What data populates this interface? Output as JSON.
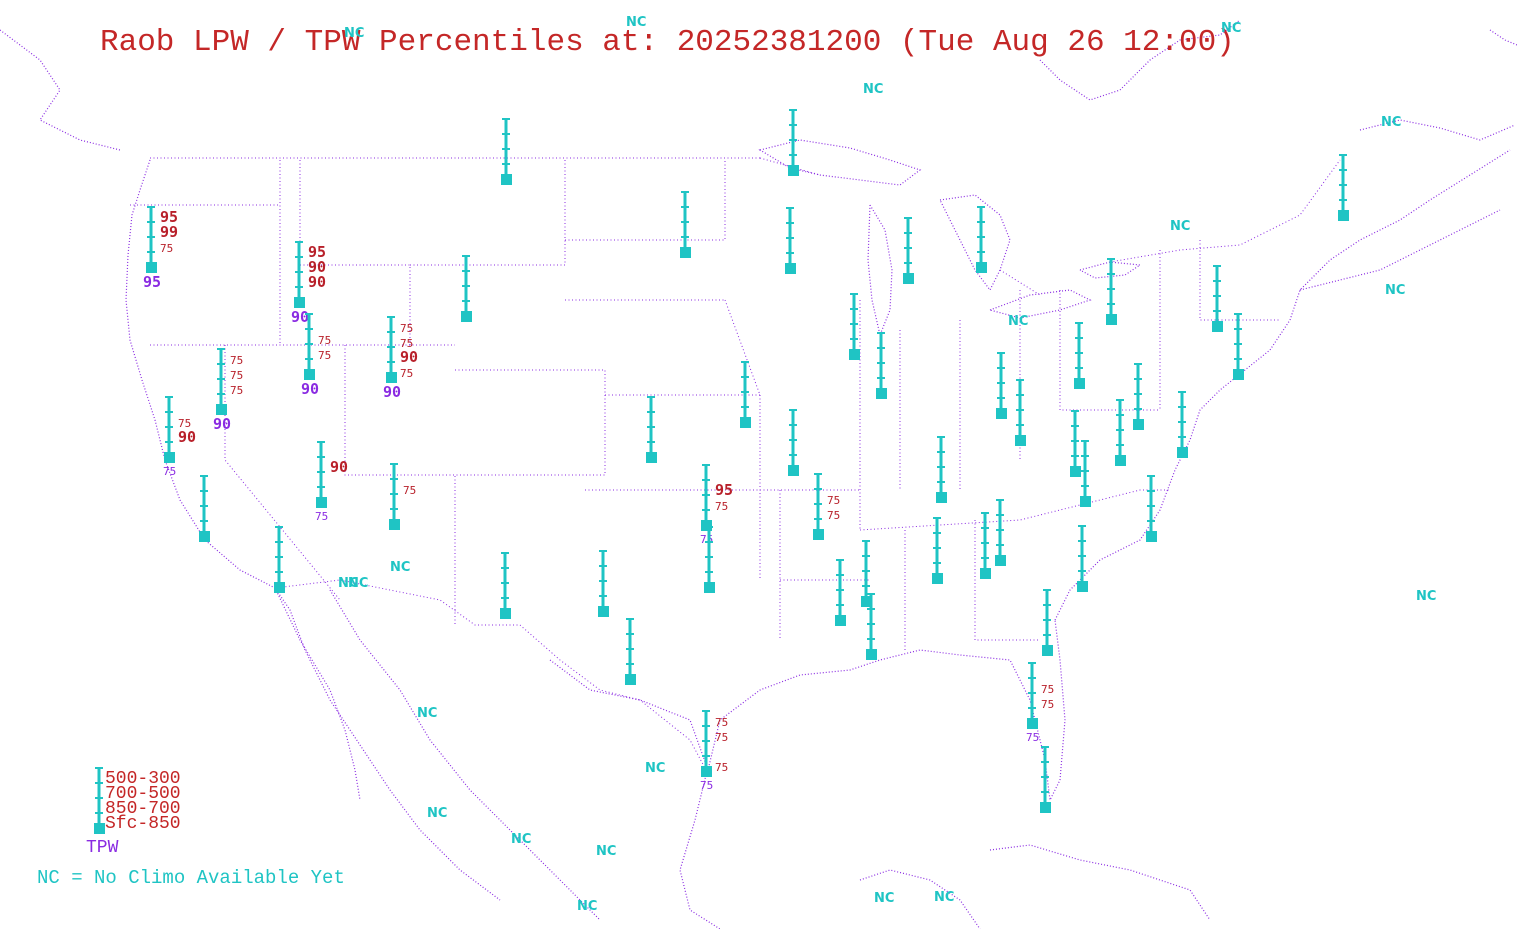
{
  "title": "Raob LPW / TPW Percentiles at: 20252381200 (Tue Aug 26 12:00)",
  "colors": {
    "title": "#c42727",
    "station": "#1fc4c4",
    "percentile": "#b8202a",
    "tpw": "#8a2be2",
    "borders": "#8a2be2"
  },
  "legend": {
    "layers": [
      "500-300",
      "700-500",
      "850-700",
      "Sfc-850"
    ],
    "tpw_label": "TPW",
    "nc_note": "NC = No Climo Available Yet"
  },
  "nc_label": "NC",
  "stations": [
    {
      "id": "quillayute",
      "p500": "95",
      "p700": "99",
      "p850": "75",
      "psfc": "",
      "tpw": "95"
    },
    {
      "id": "spokane",
      "p500": "95",
      "p700": "90",
      "p850": "90",
      "psfc": "",
      "tpw": "90"
    },
    {
      "id": "boise",
      "p500": "",
      "p700": "75",
      "p850": "75",
      "psfc": "",
      "tpw": "90"
    },
    {
      "id": "reno",
      "p500": "75",
      "p700": "75",
      "p850": "75",
      "psfc": "",
      "tpw": "90"
    },
    {
      "id": "oakland",
      "p500": "",
      "p700": "75",
      "p850": "90",
      "psfc": "",
      "tpw": "75"
    },
    {
      "id": "salt-lake-city",
      "p500": "75",
      "p700": "75",
      "p850": "90",
      "psfc": "75",
      "tpw": "90"
    },
    {
      "id": "las-vegas",
      "p500": "",
      "p700": "90",
      "p850": "",
      "psfc": "",
      "tpw": "75"
    },
    {
      "id": "grand-junction",
      "p500": "",
      "p700": "75",
      "p850": "",
      "psfc": "",
      "tpw": ""
    },
    {
      "id": "norman",
      "p500": "",
      "p700": "95",
      "p850": "75",
      "psfc": "",
      "tpw": "75"
    },
    {
      "id": "springfield",
      "p500": "",
      "p700": "75",
      "p850": "75",
      "psfc": "",
      "tpw": ""
    },
    {
      "id": "tampa",
      "p500": "",
      "p700": "75",
      "p850": "75",
      "psfc": "",
      "tpw": "75"
    },
    {
      "id": "lake-charles",
      "p500": "75",
      "p700": "75",
      "p850": "",
      "psfc": "75",
      "tpw": "75"
    },
    {
      "id": "glasgow",
      "p500": "",
      "p700": "",
      "p850": "",
      "psfc": "",
      "tpw": ""
    },
    {
      "id": "riverton",
      "p500": "",
      "p700": "",
      "p850": "",
      "psfc": "",
      "tpw": ""
    },
    {
      "id": "bismarck",
      "p500": "",
      "p700": "",
      "p850": "",
      "psfc": "",
      "tpw": ""
    },
    {
      "id": "international-falls",
      "p500": "",
      "p700": "",
      "p850": "",
      "psfc": "",
      "tpw": ""
    },
    {
      "id": "chanhassen",
      "p500": "",
      "p700": "",
      "p850": "",
      "psfc": "",
      "tpw": ""
    },
    {
      "id": "green-bay",
      "p500": "",
      "p700": "",
      "p850": "",
      "psfc": "",
      "tpw": ""
    },
    {
      "id": "gaylord",
      "p500": "",
      "p700": "",
      "p850": "",
      "psfc": "",
      "tpw": ""
    },
    {
      "id": "davenport",
      "p500": "",
      "p700": "",
      "p850": "",
      "psfc": "",
      "tpw": ""
    },
    {
      "id": "lincoln",
      "p500": "",
      "p700": "",
      "p850": "",
      "psfc": "",
      "tpw": ""
    },
    {
      "id": "topeka",
      "p500": "",
      "p700": "",
      "p850": "",
      "psfc": "",
      "tpw": ""
    },
    {
      "id": "dodge-city",
      "p500": "",
      "p700": "",
      "p850": "",
      "psfc": "",
      "tpw": ""
    },
    {
      "id": "lincoln-il",
      "p500": "",
      "p700": "",
      "p850": "",
      "psfc": "",
      "tpw": ""
    },
    {
      "id": "wilmington-oh",
      "p500": "",
      "p700": "",
      "p850": "",
      "psfc": "",
      "tpw": ""
    },
    {
      "id": "buffalo",
      "p500": "",
      "p700": "",
      "p850": "",
      "psfc": "",
      "tpw": ""
    },
    {
      "id": "pittsburgh",
      "p500": "",
      "p700": "",
      "p850": "",
      "psfc": "",
      "tpw": ""
    },
    {
      "id": "albany",
      "p500": "",
      "p700": "",
      "p850": "",
      "psfc": "",
      "tpw": ""
    },
    {
      "id": "upton",
      "p500": "",
      "p700": "",
      "p850": "",
      "psfc": "",
      "tpw": ""
    },
    {
      "id": "caribou",
      "p500": "",
      "p700": "",
      "p850": "",
      "psfc": "",
      "tpw": ""
    },
    {
      "id": "sterling",
      "p500": "",
      "p700": "",
      "p850": "",
      "psfc": "",
      "tpw": ""
    },
    {
      "id": "wallops",
      "p500": "",
      "p700": "",
      "p850": "",
      "psfc": "",
      "tpw": ""
    },
    {
      "id": "blacksburg",
      "p500": "",
      "p700": "",
      "p850": "",
      "psfc": "",
      "tpw": ""
    },
    {
      "id": "roanoke",
      "p500": "",
      "p700": "",
      "p850": "",
      "psfc": "",
      "tpw": ""
    },
    {
      "id": "newport",
      "p500": "",
      "p700": "",
      "p850": "",
      "psfc": "",
      "tpw": ""
    },
    {
      "id": "greensboro",
      "p500": "",
      "p700": "",
      "p850": "",
      "psfc": "",
      "tpw": ""
    },
    {
      "id": "charleston",
      "p500": "",
      "p700": "",
      "p850": "",
      "psfc": "",
      "tpw": ""
    },
    {
      "id": "nashville",
      "p500": "",
      "p700": "",
      "p850": "",
      "psfc": "",
      "tpw": ""
    },
    {
      "id": "birmingham",
      "p500": "",
      "p700": "",
      "p850": "",
      "psfc": "",
      "tpw": ""
    },
    {
      "id": "peachtree",
      "p500": "",
      "p700": "",
      "p850": "",
      "psfc": "",
      "tpw": ""
    },
    {
      "id": "jackson",
      "p500": "",
      "p700": "",
      "p850": "",
      "psfc": "",
      "tpw": ""
    },
    {
      "id": "slidell",
      "p500": "",
      "p700": "",
      "p850": "",
      "psfc": "",
      "tpw": ""
    },
    {
      "id": "jacksonville",
      "p500": "",
      "p700": "",
      "p850": "",
      "psfc": "",
      "tpw": ""
    },
    {
      "id": "miami",
      "p500": "",
      "p700": "",
      "p850": "",
      "psfc": "",
      "tpw": ""
    },
    {
      "id": "little-rock",
      "p500": "",
      "p700": "",
      "p850": "",
      "psfc": "",
      "tpw": ""
    },
    {
      "id": "fort-worth",
      "p500": "",
      "p700": "",
      "p850": "",
      "psfc": "",
      "tpw": ""
    },
    {
      "id": "amarillo",
      "p500": "",
      "p700": "",
      "p850": "",
      "psfc": "",
      "tpw": ""
    },
    {
      "id": "midland",
      "p500": "",
      "p700": "",
      "p850": "",
      "psfc": "",
      "tpw": ""
    },
    {
      "id": "del-rio",
      "p500": "",
      "p700": "",
      "p850": "",
      "psfc": "",
      "tpw": ""
    },
    {
      "id": "albuquerque",
      "p500": "",
      "p700": "",
      "p850": "",
      "psfc": "",
      "tpw": ""
    },
    {
      "id": "tucson",
      "p500": "",
      "p700": "",
      "p850": "",
      "psfc": "",
      "tpw": ""
    },
    {
      "id": "san-diego",
      "p500": "",
      "p700": "",
      "p850": "",
      "psfc": "",
      "tpw": ""
    },
    {
      "id": "flagstaff",
      "p500": "",
      "p700": "",
      "p850": "",
      "psfc": "",
      "tpw": ""
    }
  ]
}
